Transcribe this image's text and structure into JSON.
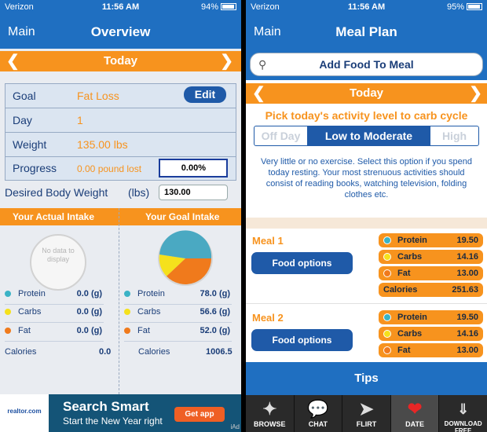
{
  "left": {
    "status": {
      "carrier": "Verizon",
      "time": "11:56 AM",
      "battery": "94%"
    },
    "nav": {
      "back": "Main",
      "title": "Overview"
    },
    "datebar": {
      "label": "Today"
    },
    "goal": {
      "rows": [
        {
          "label": "Goal",
          "value": "Fat Loss"
        },
        {
          "label": "Day",
          "value": "1"
        },
        {
          "label": "Weight",
          "value": "135.00 lbs"
        },
        {
          "label": "Progress",
          "value": "0.00 pound lost"
        }
      ],
      "edit_label": "Edit",
      "progress_percent": "0.00%"
    },
    "desired": {
      "label": "Desired Body Weight",
      "unit": "(lbs)",
      "value": "130.00"
    },
    "intake": {
      "actual_title": "Your Actual Intake",
      "goal_title": "Your Goal Intake",
      "no_data": "No data to display",
      "actual": [
        {
          "label": "Protein",
          "value": "0.0 (g)",
          "color": "#3bb3c6"
        },
        {
          "label": "Carbs",
          "value": "0.0 (g)",
          "color": "#f5e11c"
        },
        {
          "label": "Fat",
          "value": "0.0 (g)",
          "color": "#f07a1c"
        }
      ],
      "goal": [
        {
          "label": "Protein",
          "value": "78.0 (g)",
          "color": "#3bb3c6"
        },
        {
          "label": "Carbs",
          "value": "56.6 (g)",
          "color": "#f5e11c"
        },
        {
          "label": "Fat",
          "value": "52.0 (g)",
          "color": "#f07a1c"
        }
      ],
      "actual_calories": {
        "label": "Calories",
        "value": "0.0"
      },
      "goal_calories": {
        "label": "Calories",
        "value": "1006.5"
      }
    },
    "ad": {
      "logo": "realtor.com",
      "title": "Search Smart",
      "subtitle": "Start the New Year right",
      "cta": "Get app",
      "mark": "iAd"
    }
  },
  "right": {
    "status": {
      "carrier": "Verizon",
      "time": "11:56 AM",
      "battery": "95%"
    },
    "nav": {
      "back": "Main",
      "title": "Meal Plan"
    },
    "search": {
      "label": "Add Food To Meal"
    },
    "datebar": {
      "label": "Today"
    },
    "activity": {
      "prompt": "Pick today's activity level to carb cycle",
      "options": [
        "Off Day",
        "Low to Moderate",
        "High"
      ],
      "selected": "Low to Moderate",
      "description": "Very little or no exercise. Select this option if you spend today resting. Your most strenuous activities should consist of reading books, watching television, folding clothes etc."
    },
    "meals": [
      {
        "title": "Meal 1",
        "button": "Food options",
        "macros": [
          {
            "label": "Protein",
            "value": "19.50",
            "color": "#3bb3c6"
          },
          {
            "label": "Carbs",
            "value": "14.16",
            "color": "#f5e11c"
          },
          {
            "label": "Fat",
            "value": "13.00",
            "color": "#f07a1c"
          }
        ],
        "calories": {
          "label": "Calories",
          "value": "251.63"
        }
      },
      {
        "title": "Meal 2",
        "button": "Food options",
        "macros": [
          {
            "label": "Protein",
            "value": "19.50",
            "color": "#3bb3c6"
          },
          {
            "label": "Carbs",
            "value": "14.16",
            "color": "#f5e11c"
          },
          {
            "label": "Fat",
            "value": "13.00",
            "color": "#f07a1c"
          }
        ]
      }
    ],
    "tips_label": "Tips",
    "tabs": [
      {
        "label": "BROWSE",
        "icon": "browse-icon"
      },
      {
        "label": "CHAT",
        "icon": "chat-icon"
      },
      {
        "label": "FLIRT",
        "icon": "rocket-icon"
      },
      {
        "label": "DATE",
        "icon": "heart-icon"
      },
      {
        "label": "DOWNLOAD FREE",
        "icon": "download-icon"
      }
    ]
  }
}
